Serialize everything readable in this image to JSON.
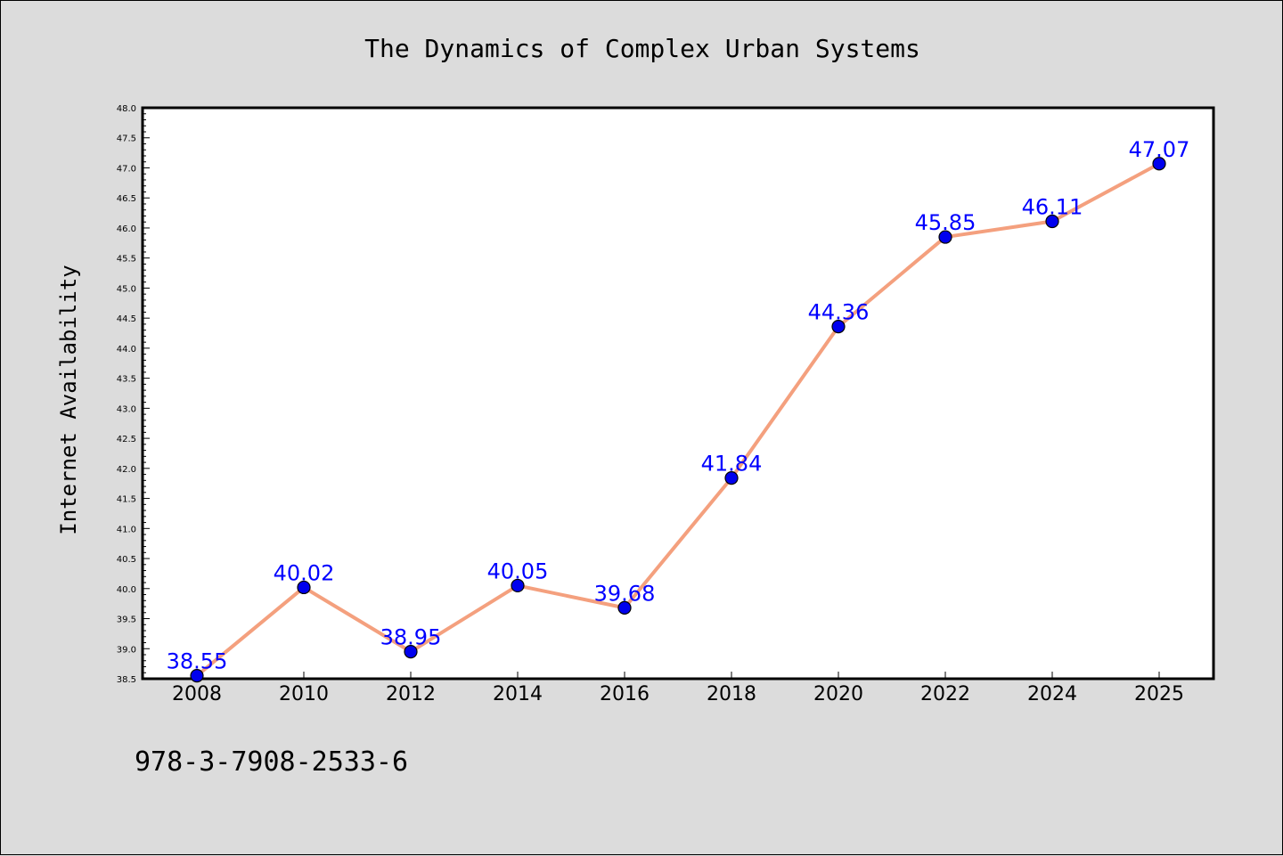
{
  "footer_text": "978-3-7908-2533-6",
  "chart_data": {
    "type": "line",
    "title": "The Dynamics of Complex Urban Systems",
    "xlabel": "",
    "ylabel": "Internet Availability",
    "x": [
      "2008",
      "2010",
      "2012",
      "2014",
      "2016",
      "2018",
      "2020",
      "2022",
      "2024",
      "2025"
    ],
    "values": [
      38.55,
      40.02,
      38.95,
      40.05,
      39.68,
      41.84,
      44.36,
      45.85,
      46.11,
      47.07
    ],
    "data_labels": [
      "38.55",
      "40.02",
      "38.95",
      "40.05",
      "39.68",
      "41.84",
      "44.36",
      "45.85",
      "46.11",
      "47.07"
    ],
    "ylim": [
      38.5,
      48.0
    ],
    "y_ticks": [
      "38.5",
      "39.0",
      "39.5",
      "40.0",
      "40.5",
      "41.0",
      "41.5",
      "42.0",
      "42.5",
      "43.0",
      "43.5",
      "44.0",
      "44.5",
      "45.0",
      "45.5",
      "46.0",
      "46.5",
      "47.0",
      "47.5",
      "48.0"
    ],
    "grid": false,
    "line_color": "#f4a07e",
    "marker_color": "#0000ee",
    "label_color": "#0000ff"
  }
}
